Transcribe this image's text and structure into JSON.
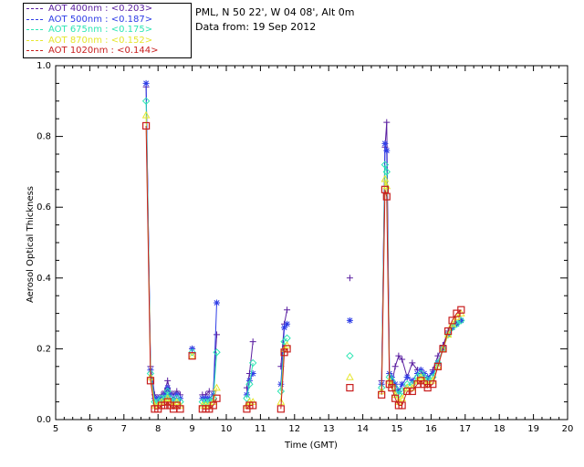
{
  "legend": [
    {
      "label": "AOT  400nm : <0.203>",
      "color": "#5a1ea0"
    },
    {
      "label": "AOT  500nm : <0.187>",
      "color": "#2d3ce6"
    },
    {
      "label": "AOT  675nm : <0.175>",
      "color": "#2ee6b4"
    },
    {
      "label": "AOT  870nm : <0.152>",
      "color": "#e6e62e"
    },
    {
      "label": "AOT 1020nm : <0.144>",
      "color": "#c81e1e"
    }
  ],
  "info": {
    "line1": "PML, N 50 22', W 04 08', Alt 0m",
    "line2": "Data from: 19 Sep 2012"
  },
  "chart_data": {
    "type": "line",
    "xlabel": "Time (GMT)",
    "ylabel": "Aerosol Optical Thickness",
    "xlim": [
      5,
      20
    ],
    "ylim": [
      0,
      1.0
    ],
    "xticks": [
      "5",
      "6",
      "7",
      "8",
      "9",
      "10",
      "11",
      "12",
      "13",
      "14",
      "15",
      "16",
      "17",
      "18",
      "19",
      "20"
    ],
    "yticks": [
      "0.0",
      "0.2",
      "0.4",
      "0.6",
      "0.8",
      "1.0"
    ],
    "series": [
      {
        "name": "AOT  400nm : <0.203>",
        "color": "#5a1ea0",
        "marker": "plus",
        "segments": [
          [
            [
              7.65,
              0.94
            ],
            [
              7.78,
              0.15
            ],
            [
              7.9,
              0.07
            ],
            [
              8.0,
              0.06
            ],
            [
              8.1,
              0.07
            ],
            [
              8.2,
              0.08
            ],
            [
              8.28,
              0.11
            ],
            [
              8.35,
              0.08
            ],
            [
              8.45,
              0.07
            ],
            [
              8.55,
              0.08
            ],
            [
              8.65,
              0.07
            ]
          ],
          [
            [
              9.0,
              0.2
            ]
          ],
          [
            [
              9.3,
              0.07
            ],
            [
              9.4,
              0.07
            ],
            [
              9.5,
              0.08
            ],
            [
              9.62,
              0.08
            ],
            [
              9.72,
              0.24
            ]
          ],
          [
            [
              10.6,
              0.09
            ],
            [
              10.68,
              0.13
            ],
            [
              10.78,
              0.22
            ]
          ],
          [
            [
              11.6,
              0.15
            ],
            [
              11.7,
              0.27
            ],
            [
              11.78,
              0.31
            ]
          ],
          [
            [
              13.62,
              0.4
            ]
          ],
          [
            [
              14.55,
              0.11
            ],
            [
              14.65,
              0.77
            ],
            [
              14.7,
              0.84
            ],
            [
              14.78,
              0.13
            ],
            [
              14.85,
              0.1
            ],
            [
              14.95,
              0.15
            ],
            [
              15.05,
              0.18
            ],
            [
              15.15,
              0.17
            ],
            [
              15.3,
              0.12
            ],
            [
              15.45,
              0.16
            ],
            [
              15.6,
              0.14
            ],
            [
              15.7,
              0.14
            ],
            [
              15.8,
              0.12
            ],
            [
              15.9,
              0.11
            ],
            [
              16.05,
              0.14
            ],
            [
              16.2,
              0.18
            ],
            [
              16.35,
              0.21
            ],
            [
              16.5,
              0.25
            ],
            [
              16.62,
              0.26
            ],
            [
              16.75,
              0.27
            ],
            [
              16.88,
              0.28
            ]
          ]
        ]
      },
      {
        "name": "AOT  500nm : <0.187>",
        "color": "#2d3ce6",
        "marker": "star",
        "segments": [
          [
            [
              7.65,
              0.95
            ],
            [
              7.78,
              0.14
            ],
            [
              7.9,
              0.06
            ],
            [
              8.0,
              0.06
            ],
            [
              8.1,
              0.06
            ],
            [
              8.2,
              0.07
            ],
            [
              8.28,
              0.09
            ],
            [
              8.35,
              0.07
            ],
            [
              8.45,
              0.06
            ],
            [
              8.55,
              0.07
            ],
            [
              8.65,
              0.06
            ]
          ],
          [
            [
              9.0,
              0.2
            ]
          ],
          [
            [
              9.3,
              0.06
            ],
            [
              9.4,
              0.06
            ],
            [
              9.5,
              0.06
            ],
            [
              9.62,
              0.07
            ],
            [
              9.72,
              0.33
            ]
          ],
          [
            [
              10.6,
              0.07
            ],
            [
              10.68,
              0.11
            ],
            [
              10.78,
              0.13
            ]
          ],
          [
            [
              11.6,
              0.1
            ],
            [
              11.7,
              0.26
            ],
            [
              11.78,
              0.27
            ]
          ],
          [
            [
              13.62,
              0.28
            ]
          ],
          [
            [
              14.55,
              0.1
            ],
            [
              14.65,
              0.78
            ],
            [
              14.7,
              0.76
            ],
            [
              14.78,
              0.13
            ],
            [
              14.85,
              0.12
            ],
            [
              14.95,
              0.1
            ],
            [
              15.05,
              0.08
            ],
            [
              15.15,
              0.1
            ],
            [
              15.3,
              0.12
            ],
            [
              15.45,
              0.11
            ],
            [
              15.6,
              0.13
            ],
            [
              15.7,
              0.14
            ],
            [
              15.8,
              0.13
            ],
            [
              15.9,
              0.12
            ],
            [
              16.05,
              0.13
            ],
            [
              16.2,
              0.16
            ],
            [
              16.35,
              0.2
            ],
            [
              16.5,
              0.24
            ],
            [
              16.62,
              0.26
            ],
            [
              16.75,
              0.27
            ],
            [
              16.88,
              0.28
            ]
          ]
        ]
      },
      {
        "name": "AOT  675nm : <0.175>",
        "color": "#2ee6b4",
        "marker": "diamond",
        "segments": [
          [
            [
              7.65,
              0.9
            ],
            [
              7.78,
              0.13
            ],
            [
              7.9,
              0.05
            ],
            [
              8.0,
              0.05
            ],
            [
              8.1,
              0.06
            ],
            [
              8.2,
              0.06
            ],
            [
              8.28,
              0.08
            ],
            [
              8.35,
              0.06
            ],
            [
              8.45,
              0.05
            ],
            [
              8.55,
              0.06
            ],
            [
              8.65,
              0.05
            ]
          ],
          [
            [
              9.0,
              0.19
            ]
          ],
          [
            [
              9.3,
              0.05
            ],
            [
              9.4,
              0.05
            ],
            [
              9.5,
              0.05
            ],
            [
              9.62,
              0.06
            ],
            [
              9.72,
              0.19
            ]
          ],
          [
            [
              10.6,
              0.06
            ],
            [
              10.68,
              0.1
            ],
            [
              10.78,
              0.16
            ]
          ],
          [
            [
              11.6,
              0.08
            ],
            [
              11.7,
              0.22
            ],
            [
              11.78,
              0.23
            ]
          ],
          [
            [
              13.62,
              0.18
            ]
          ],
          [
            [
              14.55,
              0.09
            ],
            [
              14.65,
              0.72
            ],
            [
              14.7,
              0.7
            ],
            [
              14.78,
              0.12
            ],
            [
              14.85,
              0.11
            ],
            [
              14.95,
              0.09
            ],
            [
              15.05,
              0.07
            ],
            [
              15.15,
              0.08
            ],
            [
              15.3,
              0.1
            ],
            [
              15.45,
              0.1
            ],
            [
              15.6,
              0.12
            ],
            [
              15.7,
              0.13
            ],
            [
              15.8,
              0.12
            ],
            [
              15.9,
              0.11
            ],
            [
              16.05,
              0.12
            ],
            [
              16.2,
              0.16
            ],
            [
              16.35,
              0.2
            ],
            [
              16.5,
              0.24
            ],
            [
              16.62,
              0.26
            ],
            [
              16.75,
              0.27
            ],
            [
              16.88,
              0.28
            ]
          ]
        ]
      },
      {
        "name": "AOT  870nm : <0.152>",
        "color": "#e6e62e",
        "marker": "triangle",
        "segments": [
          [
            [
              7.65,
              0.86
            ],
            [
              7.78,
              0.12
            ],
            [
              7.9,
              0.04
            ],
            [
              8.0,
              0.04
            ],
            [
              8.1,
              0.05
            ],
            [
              8.2,
              0.05
            ],
            [
              8.28,
              0.06
            ],
            [
              8.35,
              0.05
            ],
            [
              8.45,
              0.04
            ],
            [
              8.55,
              0.05
            ],
            [
              8.65,
              0.04
            ]
          ],
          [
            [
              9.0,
              0.18
            ]
          ],
          [
            [
              9.3,
              0.04
            ],
            [
              9.4,
              0.04
            ],
            [
              9.5,
              0.04
            ],
            [
              9.62,
              0.05
            ],
            [
              9.72,
              0.09
            ]
          ],
          [
            [
              10.6,
              0.04
            ],
            [
              10.68,
              0.05
            ],
            [
              10.78,
              0.05
            ]
          ],
          [
            [
              11.6,
              0.05
            ],
            [
              11.7,
              0.2
            ],
            [
              11.78,
              0.21
            ]
          ],
          [
            [
              13.62,
              0.12
            ]
          ],
          [
            [
              14.55,
              0.08
            ],
            [
              14.65,
              0.68
            ],
            [
              14.7,
              0.66
            ],
            [
              14.78,
              0.11
            ],
            [
              14.85,
              0.1
            ],
            [
              14.95,
              0.07
            ],
            [
              15.05,
              0.05
            ],
            [
              15.15,
              0.06
            ],
            [
              15.3,
              0.09
            ],
            [
              15.45,
              0.09
            ],
            [
              15.6,
              0.11
            ],
            [
              15.7,
              0.12
            ],
            [
              15.8,
              0.11
            ],
            [
              15.9,
              0.1
            ],
            [
              16.05,
              0.11
            ],
            [
              16.2,
              0.15
            ],
            [
              16.35,
              0.2
            ],
            [
              16.5,
              0.24
            ],
            [
              16.62,
              0.27
            ],
            [
              16.75,
              0.29
            ],
            [
              16.88,
              0.3
            ]
          ]
        ]
      },
      {
        "name": "AOT 1020nm : <0.144>",
        "color": "#c81e1e",
        "marker": "square",
        "segments": [
          [
            [
              7.65,
              0.83
            ],
            [
              7.78,
              0.11
            ],
            [
              7.9,
              0.03
            ],
            [
              8.0,
              0.03
            ],
            [
              8.1,
              0.04
            ],
            [
              8.2,
              0.04
            ],
            [
              8.28,
              0.05
            ],
            [
              8.35,
              0.04
            ],
            [
              8.45,
              0.03
            ],
            [
              8.55,
              0.04
            ],
            [
              8.65,
              0.03
            ]
          ],
          [
            [
              9.0,
              0.18
            ]
          ],
          [
            [
              9.3,
              0.03
            ],
            [
              9.4,
              0.03
            ],
            [
              9.5,
              0.03
            ],
            [
              9.62,
              0.04
            ],
            [
              9.72,
              0.06
            ]
          ],
          [
            [
              10.6,
              0.03
            ],
            [
              10.68,
              0.04
            ],
            [
              10.78,
              0.04
            ]
          ],
          [
            [
              11.6,
              0.03
            ],
            [
              11.7,
              0.19
            ],
            [
              11.78,
              0.2
            ]
          ],
          [
            [
              13.62,
              0.09
            ]
          ],
          [
            [
              14.55,
              0.07
            ],
            [
              14.65,
              0.65
            ],
            [
              14.7,
              0.63
            ],
            [
              14.78,
              0.1
            ],
            [
              14.85,
              0.09
            ],
            [
              14.95,
              0.06
            ],
            [
              15.05,
              0.04
            ],
            [
              15.15,
              0.04
            ],
            [
              15.3,
              0.08
            ],
            [
              15.45,
              0.08
            ],
            [
              15.6,
              0.1
            ],
            [
              15.7,
              0.11
            ],
            [
              15.8,
              0.1
            ],
            [
              15.9,
              0.09
            ],
            [
              16.05,
              0.1
            ],
            [
              16.2,
              0.15
            ],
            [
              16.35,
              0.2
            ],
            [
              16.5,
              0.25
            ],
            [
              16.62,
              0.28
            ],
            [
              16.75,
              0.3
            ],
            [
              16.88,
              0.31
            ]
          ]
        ]
      }
    ]
  }
}
